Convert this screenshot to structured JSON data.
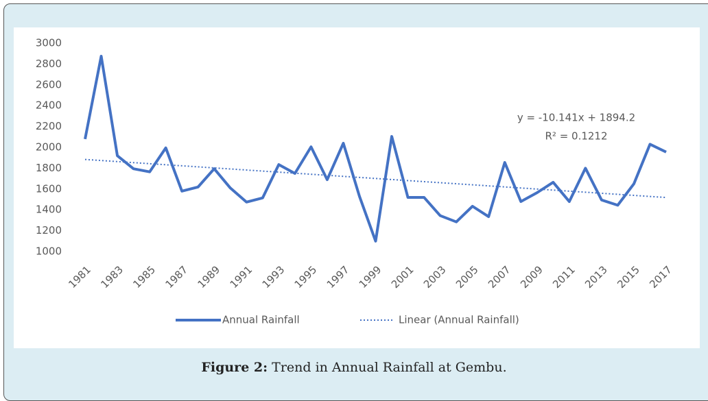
{
  "chart_data": {
    "type": "line",
    "categories": [
      "1981",
      null,
      "1983",
      null,
      "1985",
      null,
      "1987",
      null,
      "1989",
      null,
      "1991",
      null,
      "1993",
      null,
      "1995",
      null,
      "1997",
      null,
      "1999",
      null,
      "2001",
      null,
      "2003",
      null,
      "2005",
      null,
      "2007",
      null,
      "2009",
      null,
      "2011",
      null,
      "2013",
      null,
      "2015",
      null,
      "2017"
    ],
    "series": [
      {
        "name": "Annual Rainfall",
        "color": "#4472c4",
        "line_style": "solid",
        "values": [
          2080,
          2875,
          1920,
          1795,
          1765,
          1995,
          1580,
          1620,
          1795,
          1610,
          1475,
          1515,
          1835,
          1750,
          2005,
          1690,
          2040,
          1530,
          1100,
          2105,
          1520,
          1520,
          1345,
          1285,
          1435,
          1335,
          1855,
          1480,
          1565,
          1665,
          1480,
          1800,
          1495,
          1445,
          1650,
          2030,
          1955
        ]
      },
      {
        "name": "Linear (Annual Rainfall)",
        "color": "#4472c4",
        "line_style": "dotted",
        "values": [
          1884.1,
          1873.9,
          1863.8,
          1853.6,
          1843.5,
          1833.4,
          1823.2,
          1813.1,
          1802.9,
          1792.8,
          1782.6,
          1772.5,
          1762.4,
          1752.2,
          1742.1,
          1731.9,
          1721.8,
          1711.7,
          1701.5,
          1691.4,
          1681.2,
          1671.1,
          1660.9,
          1650.8,
          1640.7,
          1630.5,
          1620.4,
          1610.2,
          1600.1,
          1589.9,
          1579.8,
          1569.7,
          1559.5,
          1549.4,
          1539.3,
          1529.1,
          1519.0
        ]
      }
    ],
    "ylim": [
      1000,
      3000
    ],
    "yticks": [
      1000,
      1200,
      1400,
      1600,
      1800,
      2000,
      2200,
      2400,
      2600,
      2800,
      3000
    ],
    "grid": false,
    "legend": "bottom",
    "annotations": [
      "y = -10.141x + 1894.2",
      "R² = 0.1212"
    ]
  },
  "caption": {
    "label": "Figure 2:",
    "text": "Trend in Annual Rainfall at Gembu."
  }
}
